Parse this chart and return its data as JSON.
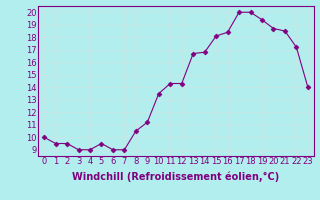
{
  "x": [
    0,
    1,
    2,
    3,
    4,
    5,
    6,
    7,
    8,
    9,
    10,
    11,
    12,
    13,
    14,
    15,
    16,
    17,
    18,
    19,
    20,
    21,
    22,
    23
  ],
  "y": [
    10.0,
    9.5,
    9.5,
    9.0,
    9.0,
    9.5,
    9.0,
    9.0,
    10.5,
    11.2,
    13.5,
    14.3,
    14.3,
    16.7,
    16.8,
    18.1,
    18.4,
    20.0,
    20.0,
    19.4,
    18.7,
    18.5,
    17.2,
    14.0
  ],
  "line_color": "#800080",
  "marker": "D",
  "marker_size": 2.5,
  "bg_color": "#b2eeee",
  "grid_color": "#c8e8e8",
  "xlabel": "Windchill (Refroidissement éolien,°C)",
  "xlabel_fontsize": 7,
  "tick_fontsize": 6,
  "ylim": [
    8.5,
    20.5
  ],
  "yticks": [
    9,
    10,
    11,
    12,
    13,
    14,
    15,
    16,
    17,
    18,
    19,
    20
  ],
  "xlim": [
    -0.5,
    23.5
  ],
  "xticks": [
    0,
    1,
    2,
    3,
    4,
    5,
    6,
    7,
    8,
    9,
    10,
    11,
    12,
    13,
    14,
    15,
    16,
    17,
    18,
    19,
    20,
    21,
    22,
    23
  ]
}
